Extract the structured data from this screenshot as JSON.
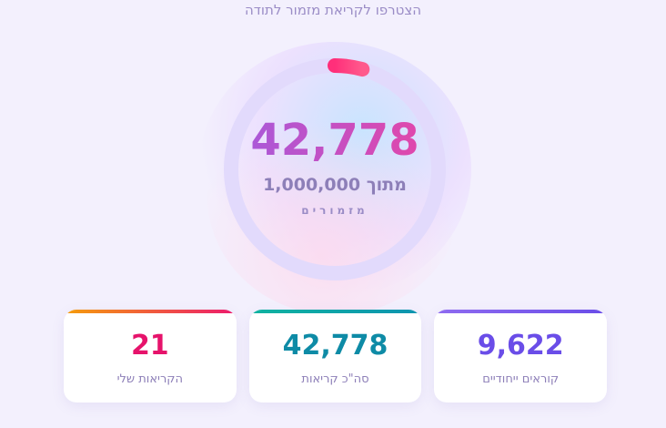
{
  "header": {
    "subtitle": "הצטרפו לקריאת מזמור לתודה"
  },
  "progress": {
    "count": {
      "value": 42778,
      "label": "42,778"
    },
    "of_label": "מתוך",
    "total": {
      "value": 1000000,
      "label": "1,000,000"
    },
    "unit": "מזמורים"
  },
  "cards": [
    {
      "value": "9,622",
      "label": "קוראים ייחודיים"
    },
    {
      "value": "42,778",
      "label": "סה\"כ קריאות"
    },
    {
      "value": "21",
      "label": "הקריאות שלי"
    }
  ]
}
